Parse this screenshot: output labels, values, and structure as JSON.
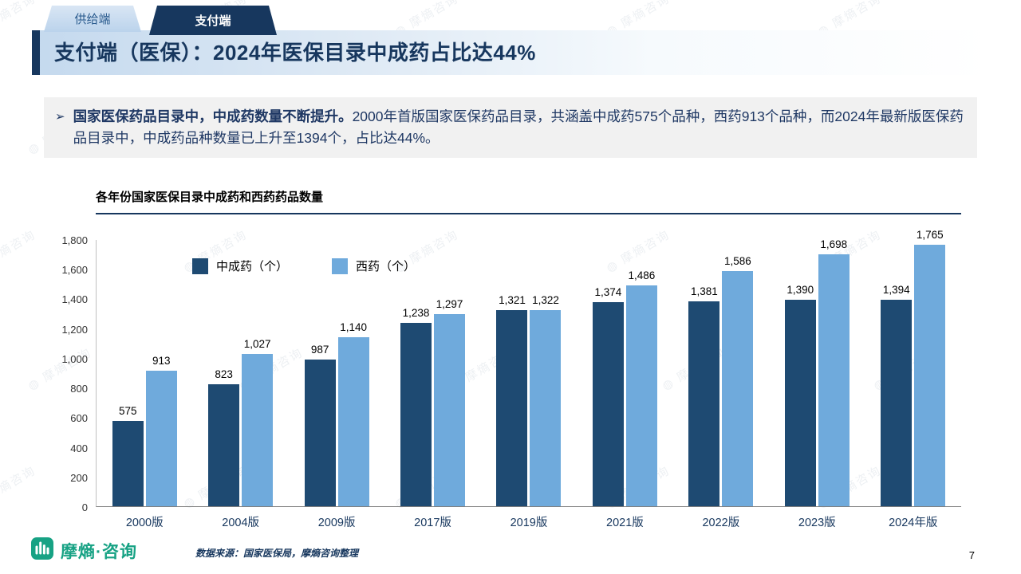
{
  "tabs": [
    {
      "label": "供给端"
    },
    {
      "label": "支付端"
    }
  ],
  "header": {
    "title": "支付端（医保）：2024年医保目录中成药占比达44%"
  },
  "bullet": {
    "marker": "➢",
    "bold": "国家医保药品目录中，中成药数量不断提升。",
    "text": "2000年首版国家医保药品目录，共涵盖中成药575个品种，西药913个品种，而2024年最新版医保药品目录中，中成药品种数量已上升至1394个，占比达44%。"
  },
  "chart_data": {
    "type": "bar",
    "title": "各年份国家医保目录中成药和西药药品数量",
    "categories": [
      "2000版",
      "2004版",
      "2009版",
      "2017版",
      "2019版",
      "2021版",
      "2022版",
      "2023版",
      "2024年版"
    ],
    "series": [
      {
        "name": "中成药（个）",
        "color": "#1E4A72",
        "values": [
          575,
          823,
          987,
          1238,
          1321,
          1374,
          1381,
          1390,
          1394
        ]
      },
      {
        "name": "西药（个）",
        "color": "#6FAADC",
        "values": [
          913,
          1027,
          1140,
          1297,
          1322,
          1486,
          1586,
          1698,
          1765
        ]
      }
    ],
    "ylim": [
      0,
      1800
    ],
    "ytick_step": 200,
    "grid": false,
    "legend_position": "top-left-inside"
  },
  "footer": {
    "logo_text": "摩熵·咨询",
    "source": "数据来源：国家医保局，摩熵咨询整理",
    "page": "7"
  },
  "watermark": "摩熵咨询",
  "colors": {
    "accent_navy": "#17375E",
    "bar_dark": "#1E4A72",
    "bar_light": "#6FAADC",
    "brand_teal": "#17A284"
  }
}
